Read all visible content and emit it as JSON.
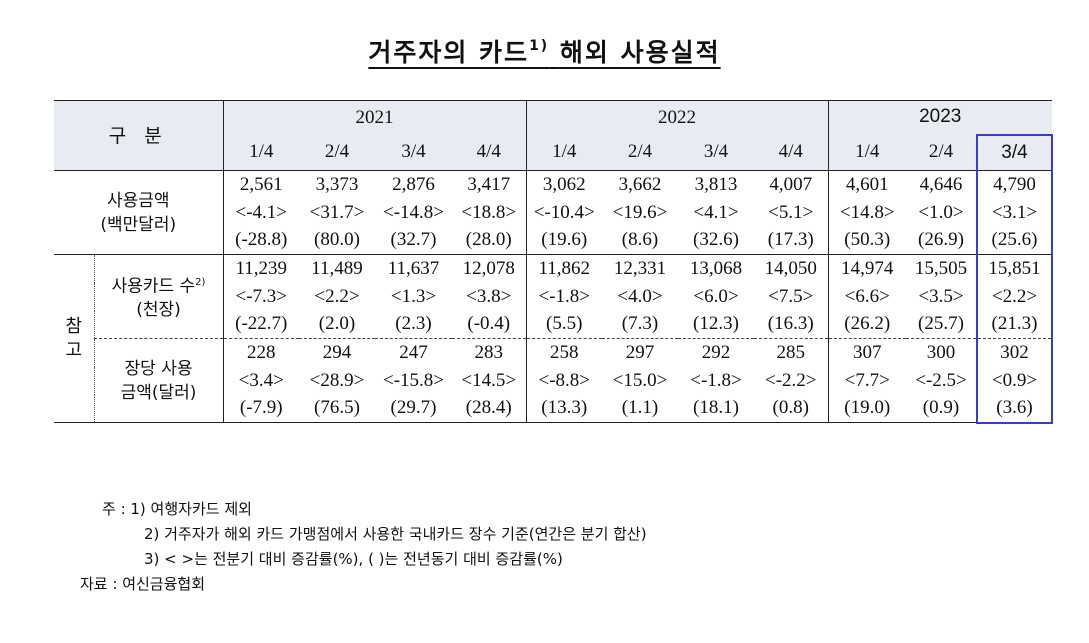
{
  "title": {
    "text": "거주자의 카드",
    "sup": "1)",
    "text2": "해외 사용실적"
  },
  "header": {
    "division": "구  분",
    "years": [
      "2021",
      "2022",
      "2023"
    ],
    "quarters": [
      "1/4",
      "2/4",
      "3/4",
      "4/4",
      "1/4",
      "2/4",
      "3/4",
      "4/4",
      "1/4",
      "2/4",
      "3/4"
    ]
  },
  "sections": {
    "amount": {
      "label1": "사용금액",
      "label2": "(백만달러)",
      "rows": [
        [
          "2,561",
          "3,373",
          "2,876",
          "3,417",
          "3,062",
          "3,662",
          "3,813",
          "4,007",
          "4,601",
          "4,646",
          "4,790"
        ],
        [
          "<-4.1>",
          "<31.7>",
          "<-14.8>",
          "<18.8>",
          "<-10.4>",
          "<19.6>",
          "<4.1>",
          "<5.1>",
          "<14.8>",
          "<1.0>",
          "<3.1>"
        ],
        [
          "(-28.8)",
          "(80.0)",
          "(32.7)",
          "(28.0)",
          "(19.6)",
          "(8.6)",
          "(32.6)",
          "(17.3)",
          "(50.3)",
          "(26.9)",
          "(25.6)"
        ]
      ]
    },
    "reference_label": "참\n고",
    "cards": {
      "label1": "사용카드 수",
      "sup": "2)",
      "label2": "(천장)",
      "rows": [
        [
          "11,239",
          "11,489",
          "11,637",
          "12,078",
          "11,862",
          "12,331",
          "13,068",
          "14,050",
          "14,974",
          "15,505",
          "15,851"
        ],
        [
          "<-7.3>",
          "<2.2>",
          "<1.3>",
          "<3.8>",
          "<-1.8>",
          "<4.0>",
          "<6.0>",
          "<7.5>",
          "<6.6>",
          "<3.5>",
          "<2.2>"
        ],
        [
          "(-22.7)",
          "(2.0)",
          "(2.3)",
          "(-0.4)",
          "(5.5)",
          "(7.3)",
          "(12.3)",
          "(16.3)",
          "(26.2)",
          "(25.7)",
          "(21.3)"
        ]
      ]
    },
    "per_card": {
      "label1": "장당 사용",
      "label2": "금액(달러)",
      "rows": [
        [
          "228",
          "294",
          "247",
          "283",
          "258",
          "297",
          "292",
          "285",
          "307",
          "300",
          "302"
        ],
        [
          "<3.4>",
          "<28.9>",
          "<-15.8>",
          "<14.5>",
          "<-8.8>",
          "<15.0>",
          "<-1.8>",
          "<-2.2>",
          "<7.7>",
          "<-2.5>",
          "<0.9>"
        ],
        [
          "(-7.9)",
          "(76.5)",
          "(29.7)",
          "(28.4)",
          "(13.3)",
          "(1.1)",
          "(18.1)",
          "(0.8)",
          "(19.0)",
          "(0.9)",
          "(3.6)"
        ]
      ]
    }
  },
  "notes": {
    "n1": "주 : 1) 여행자카드 제외",
    "n2": "2) 거주자가 해외 카드 가맹점에서 사용한 국내카드 장수 기준(연간은 분기 합산)",
    "n3": "3) <   >는 전분기 대비 증감률(%), (   )는 전년동기 대비 증감률(%)",
    "source": "자료 : 여신금융협회"
  },
  "colors": {
    "header_bg": "#e8ebf2",
    "highlight_border": "#3a3ad0"
  }
}
